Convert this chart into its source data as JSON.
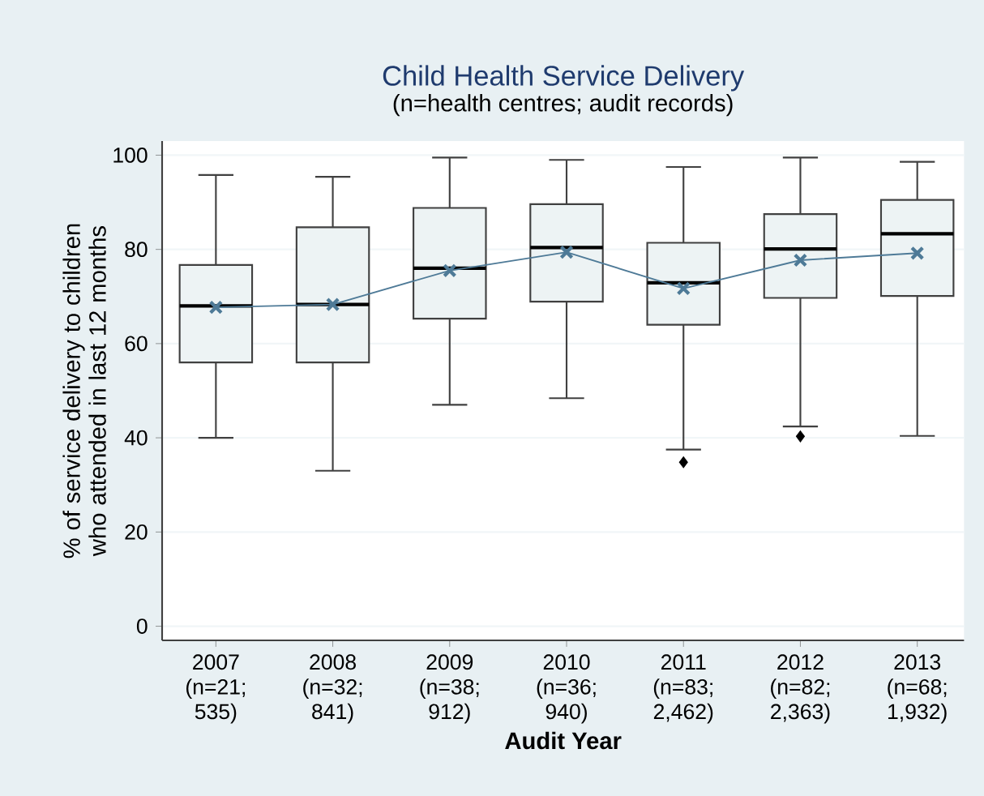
{
  "chart_data": {
    "type": "box",
    "title": "Child Health Service Delivery",
    "subtitle": "(n=health centres; audit records)",
    "xlabel": "Audit Year",
    "ylabel": "% of service delivery to children who attended in last 12 months",
    "categories": [
      "2007 (n=21; 535)",
      "2008 (n=32; 841)",
      "2009 (n=38; 912)",
      "2010 (n=36; 940)",
      "2011 (n=83; 2,462)",
      "2012 (n=82; 2,363)",
      "2013 (n=68; 1,932)"
    ],
    "series": [
      {
        "color": "#edf3f4",
        "boxes": [
          {
            "low": 40,
            "q1": 56,
            "median": 68,
            "q3": 76.7,
            "high": 95.8
          },
          {
            "low": 33,
            "q1": 56,
            "median": 68.3,
            "q3": 84.7,
            "high": 95.4
          },
          {
            "low": 47,
            "q1": 65.3,
            "median": 76,
            "q3": 88.8,
            "high": 99.5
          },
          {
            "low": 48.4,
            "q1": 68.9,
            "median": 80.4,
            "q3": 89.6,
            "high": 99
          },
          {
            "low": 37.5,
            "q1": 64,
            "median": 72.9,
            "q3": 81.4,
            "high": 97.5,
            "outliers": [
              34.8
            ]
          },
          {
            "low": 42.4,
            "q1": 69.7,
            "median": 80.1,
            "q3": 87.5,
            "high": 99.5,
            "outliers": [
              40.3
            ]
          },
          {
            "low": 40.4,
            "q1": 70.1,
            "median": 83.3,
            "q3": 90.5,
            "high": 98.6
          }
        ]
      },
      {
        "type": "line",
        "color": "#4e7a97",
        "marker": "cross",
        "values": [
          67.7,
          68.3,
          75.5,
          79.4,
          71.7,
          77.7,
          79.2
        ]
      }
    ],
    "ylim": [
      -3,
      103
    ],
    "yticks": [
      0,
      20,
      40,
      60,
      80,
      100
    ],
    "grid": "y"
  }
}
